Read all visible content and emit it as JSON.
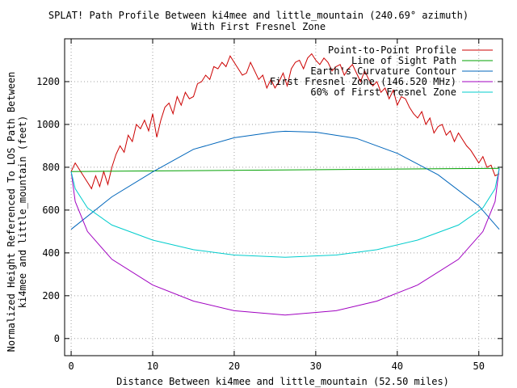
{
  "chart_data": {
    "type": "line",
    "title": "SPLAT! Path Profile Between ki4mee and little_mountain (240.69° azimuth)",
    "subtitle": "With First Fresnel Zone",
    "xlabel": "Distance Between ki4mee and little_mountain (52.50 miles)",
    "ylabel_line1": "Normalized Height Referenced To LOS Path Between",
    "ylabel_line2": "ki4mee and little_mountain (feet)",
    "xlim": [
      -0.8,
      52.9
    ],
    "ylim": [
      -80,
      1400
    ],
    "x_ticks": [
      0,
      10,
      20,
      30,
      40,
      50
    ],
    "y_ticks": [
      0,
      200,
      400,
      600,
      800,
      1000,
      1200
    ],
    "grid": true,
    "legend_position": "top-right",
    "series": [
      {
        "name": "Point-to-Point Profile",
        "color": "#cc0000",
        "x": [
          0,
          0.5,
          1,
          1.5,
          2,
          2.5,
          3,
          3.5,
          4,
          4.5,
          5,
          5.5,
          6,
          6.5,
          7,
          7.5,
          8,
          8.5,
          9,
          9.5,
          10,
          10.5,
          11,
          11.5,
          12,
          12.5,
          13,
          13.5,
          14,
          14.5,
          15,
          15.5,
          16,
          16.5,
          17,
          17.5,
          18,
          18.5,
          19,
          19.5,
          20,
          20.5,
          21,
          21.5,
          22,
          22.5,
          23,
          23.5,
          24,
          24.5,
          25,
          25.5,
          26,
          26.5,
          27,
          27.5,
          28,
          28.5,
          29,
          29.5,
          30,
          30.5,
          31,
          31.5,
          32,
          32.5,
          33,
          33.5,
          34,
          34.5,
          35,
          35.5,
          36,
          36.5,
          37,
          37.5,
          38,
          38.5,
          39,
          39.5,
          40,
          40.5,
          41,
          41.5,
          42,
          42.5,
          43,
          43.5,
          44,
          44.5,
          45,
          45.5,
          46,
          46.5,
          47,
          47.5,
          48,
          48.5,
          49,
          49.5,
          50,
          50.5,
          51,
          51.5,
          52,
          52.5
        ],
        "values": [
          780,
          820,
          790,
          760,
          730,
          700,
          760,
          710,
          780,
          720,
          800,
          860,
          900,
          870,
          950,
          920,
          1000,
          980,
          1020,
          970,
          1050,
          940,
          1020,
          1080,
          1100,
          1050,
          1130,
          1090,
          1150,
          1120,
          1130,
          1190,
          1200,
          1230,
          1210,
          1270,
          1260,
          1290,
          1270,
          1320,
          1290,
          1260,
          1230,
          1240,
          1290,
          1250,
          1210,
          1230,
          1170,
          1210,
          1170,
          1200,
          1240,
          1180,
          1260,
          1290,
          1300,
          1260,
          1310,
          1330,
          1300,
          1280,
          1310,
          1290,
          1250,
          1270,
          1280,
          1230,
          1260,
          1280,
          1240,
          1200,
          1250,
          1210,
          1180,
          1200,
          1150,
          1170,
          1120,
          1160,
          1090,
          1130,
          1120,
          1080,
          1050,
          1030,
          1060,
          1000,
          1030,
          960,
          990,
          1000,
          950,
          970,
          920,
          960,
          930,
          900,
          880,
          850,
          820,
          850,
          800,
          810,
          760,
          770
        ]
      },
      {
        "name": "Line of Sight Path",
        "color": "#00a000",
        "x": [
          0,
          52.5
        ],
        "values": [
          780,
          795
        ]
      },
      {
        "name": "Earth's Curvature Contour",
        "color": "#0066bb",
        "x": [
          0,
          5,
          10,
          15,
          20,
          25,
          26.25,
          30,
          35,
          40,
          45,
          50,
          52.5
        ],
        "values": [
          510,
          662,
          778,
          884,
          938,
          965,
          968,
          964,
          935,
          865,
          765,
          620,
          510
        ]
      },
      {
        "name": "First Fresnel Zone (146.520 MHz)",
        "color": "#a000c0",
        "x": [
          0,
          0.5,
          2,
          5,
          10,
          15,
          20,
          26.25,
          32.5,
          37.5,
          42.5,
          47.5,
          50.5,
          52,
          52.5
        ],
        "values": [
          780,
          640,
          500,
          370,
          250,
          175,
          130,
          110,
          130,
          175,
          250,
          370,
          500,
          640,
          795
        ]
      },
      {
        "name": "60% of First Fresnel Zone",
        "color": "#00cccc",
        "x": [
          0,
          0.5,
          2,
          5,
          10,
          15,
          20,
          26.25,
          32.5,
          37.5,
          42.5,
          47.5,
          50.5,
          52,
          52.5
        ],
        "values": [
          780,
          700,
          610,
          530,
          460,
          415,
          390,
          380,
          390,
          415,
          460,
          530,
          610,
          700,
          795
        ]
      }
    ]
  }
}
